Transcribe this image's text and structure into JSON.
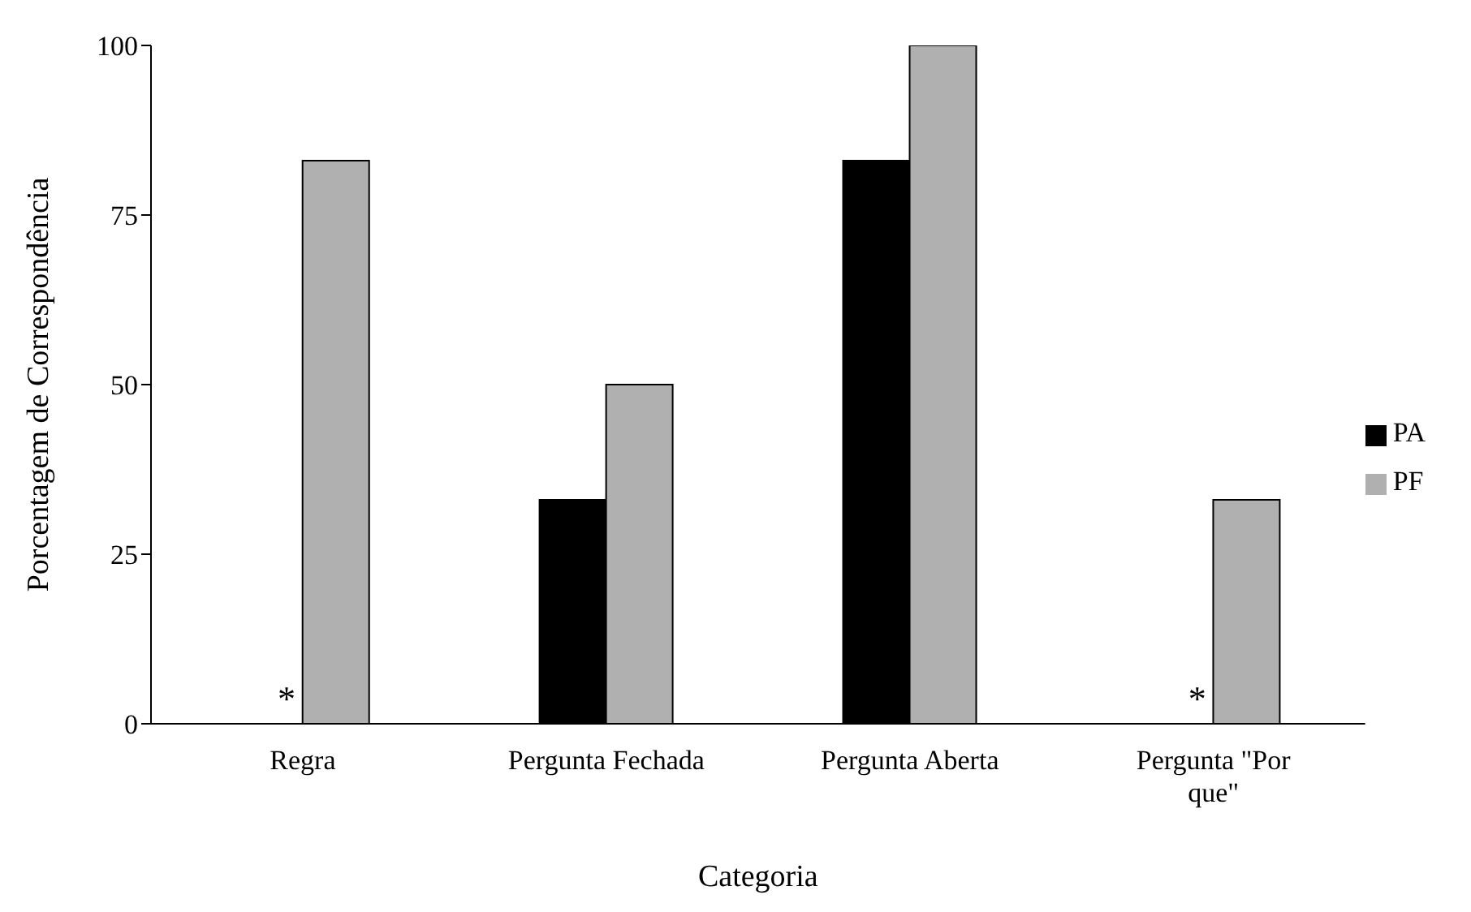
{
  "chart_data": {
    "type": "bar",
    "xlabel": "Categoria",
    "ylabel": "Porcentagem de Correspondência",
    "categories": [
      "Regra",
      "Pergunta Fechada",
      "Pergunta Aberta",
      "Pergunta \"Por que\""
    ],
    "series": [
      {
        "name": "PA",
        "color": "#000000",
        "values": [
          0,
          33,
          83,
          0
        ]
      },
      {
        "name": "PF",
        "color": "#b0b0b0",
        "values": [
          83,
          50,
          100,
          33
        ]
      }
    ],
    "ylim": [
      0,
      100
    ],
    "yticks": [
      0,
      25,
      50,
      75,
      100
    ],
    "grid": false,
    "legend": "right",
    "annotations": [
      {
        "text": "*",
        "x": "Regra",
        "y": 0
      },
      {
        "text": "*",
        "x": "Pergunta \"Por que\"",
        "y": 0
      }
    ]
  }
}
